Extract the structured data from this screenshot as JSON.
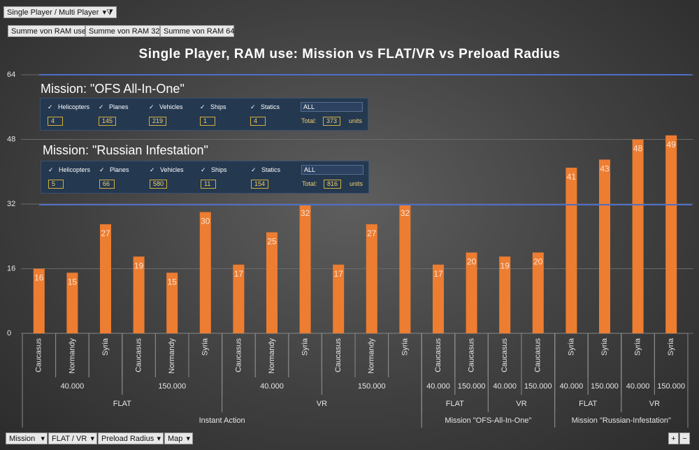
{
  "controls": {
    "filter": "Single Player / Multi Player",
    "value_fields": [
      "Summe von RAM use",
      "Summe von RAM 32",
      "Summe von RAM 64"
    ],
    "axis_fields": [
      "Mission",
      "FLAT / VR",
      "Preload Radius",
      "Map"
    ]
  },
  "chart_data": {
    "type": "bar",
    "title": "Single Player, RAM use:   Mission   vs   FLAT/VR   vs   Preload Radius",
    "color": "#ed7d31",
    "grid": true,
    "ylim": [
      0,
      64
    ],
    "yticks": [
      0,
      16,
      32,
      48,
      64
    ],
    "values": [
      16,
      15,
      27,
      19,
      15,
      30,
      17,
      25,
      32,
      17,
      27,
      32,
      17,
      20,
      19,
      20,
      41,
      43,
      48,
      49
    ],
    "category_tree": [
      {
        "label": "Instant Action",
        "children": [
          {
            "label": "FLAT",
            "children": [
              {
                "label": "40.000",
                "children": [
                  "Caucasus",
                  "Normandy",
                  "Syria"
                ]
              },
              {
                "label": "150.000",
                "children": [
                  "Caucasus",
                  "Normandy",
                  "Syria"
                ]
              }
            ]
          },
          {
            "label": "VR",
            "children": [
              {
                "label": "40.000",
                "children": [
                  "Caucasus",
                  "Normandy",
                  "Syria"
                ]
              },
              {
                "label": "150.000",
                "children": [
                  "Caucasus",
                  "Normandy",
                  "Syria"
                ]
              }
            ]
          }
        ]
      },
      {
        "label": "Mission \"OFS-All-In-One\"",
        "children": [
          {
            "label": "FLAT",
            "children": [
              {
                "label": "40.000",
                "children": [
                  "Caucasus"
                ]
              },
              {
                "label": "150.000",
                "children": [
                  "Caucasus"
                ]
              }
            ]
          },
          {
            "label": "VR",
            "children": [
              {
                "label": "40.000",
                "children": [
                  "Caucasus"
                ]
              },
              {
                "label": "150.000",
                "children": [
                  "Caucasus"
                ]
              }
            ]
          }
        ]
      },
      {
        "label": "Mission \"Russian-Infestation\"",
        "children": [
          {
            "label": "FLAT",
            "children": [
              {
                "label": "40.000",
                "children": [
                  "Syria"
                ]
              },
              {
                "label": "150.000",
                "children": [
                  "Syria"
                ]
              }
            ]
          },
          {
            "label": "VR",
            "children": [
              {
                "label": "40.000",
                "children": [
                  "Syria"
                ]
              },
              {
                "label": "150.000",
                "children": [
                  "Syria"
                ]
              }
            ]
          }
        ]
      }
    ]
  },
  "panels": [
    {
      "title": "Mission: \"OFS All-In-One\"",
      "items": [
        {
          "label": "Helicopters",
          "count": 4
        },
        {
          "label": "Planes",
          "count": 145
        },
        {
          "label": "Vehicles",
          "count": 219
        },
        {
          "label": "Ships",
          "count": 1
        },
        {
          "label": "Statics",
          "count": 4
        }
      ],
      "dropdown": "ALL",
      "total_label": "Total:",
      "total": 373,
      "unit": "units"
    },
    {
      "title": "Mission: \"Russian Infestation\"",
      "items": [
        {
          "label": "Helicopters",
          "count": 5
        },
        {
          "label": "Planes",
          "count": 66
        },
        {
          "label": "Vehicles",
          "count": 580
        },
        {
          "label": "Ships",
          "count": 11
        },
        {
          "label": "Statics",
          "count": 154
        }
      ],
      "dropdown": "ALL",
      "total_label": "Total:",
      "total": 816,
      "unit": "units"
    }
  ]
}
